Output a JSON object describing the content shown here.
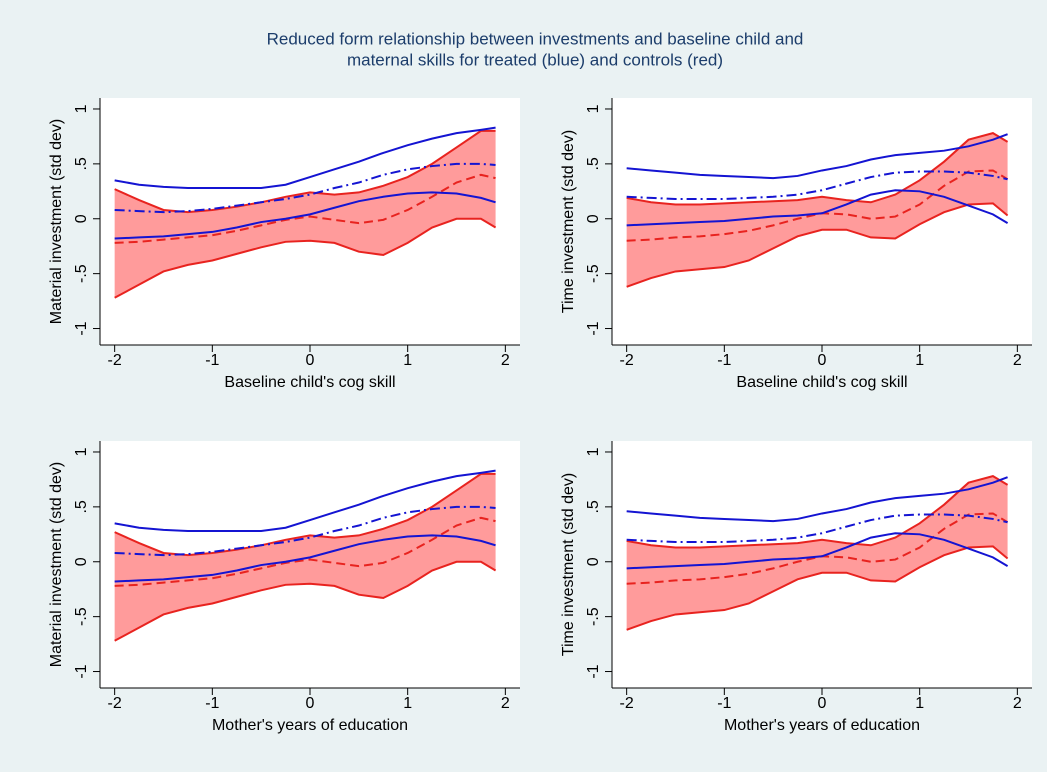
{
  "title": [
    "Reduced form relationship between investments and baseline child and",
    "maternal skills for treated (blue) and controls (red)"
  ],
  "chart_data": [
    {
      "type": "line",
      "xlabel": "Baseline child's cog skill",
      "ylabel": "Material investment (std dev)",
      "x": [
        -2,
        -1.75,
        -1.5,
        -1.25,
        -1,
        -0.75,
        -0.5,
        -0.25,
        0,
        0.25,
        0.5,
        0.75,
        1,
        1.25,
        1.5,
        1.75,
        1.9
      ],
      "xlim": [
        -2.15,
        2.15
      ],
      "ylim": [
        -1.15,
        1.1
      ],
      "xticks": [
        -2,
        -1,
        0,
        1,
        2
      ],
      "yticks": [
        {
          "value": -1,
          "label": "-1"
        },
        {
          "value": -0.5,
          "label": "-.5"
        },
        0,
        {
          "value": 0.5,
          "label": ".5"
        },
        1
      ],
      "band": {
        "color": "#ff9b9b",
        "edge": "#e8231f",
        "upper": [
          0.27,
          0.17,
          0.08,
          0.06,
          0.08,
          0.11,
          0.15,
          0.2,
          0.24,
          0.22,
          0.24,
          0.3,
          0.38,
          0.5,
          0.65,
          0.8,
          0.8
        ],
        "lower": [
          -0.72,
          -0.6,
          -0.48,
          -0.42,
          -0.38,
          -0.32,
          -0.26,
          -0.21,
          -0.2,
          -0.22,
          -0.3,
          -0.33,
          -0.22,
          -0.08,
          0.0,
          0.0,
          -0.08
        ]
      },
      "series": [
        {
          "color": "#e8231f",
          "style": "dashed",
          "values": [
            -0.22,
            -0.21,
            -0.19,
            -0.17,
            -0.15,
            -0.11,
            -0.06,
            -0.01,
            0.02,
            -0.01,
            -0.04,
            -0.01,
            0.08,
            0.2,
            0.33,
            0.4,
            0.37
          ]
        },
        {
          "color": "#1414d2",
          "style": "dash-dot",
          "values": [
            0.08,
            0.07,
            0.06,
            0.07,
            0.09,
            0.12,
            0.15,
            0.18,
            0.22,
            0.28,
            0.33,
            0.4,
            0.45,
            0.48,
            0.5,
            0.5,
            0.49
          ]
        },
        {
          "color": "#1414d2",
          "style": "solid",
          "values": [
            0.35,
            0.31,
            0.29,
            0.28,
            0.28,
            0.28,
            0.28,
            0.31,
            0.38,
            0.45,
            0.52,
            0.6,
            0.67,
            0.73,
            0.78,
            0.81,
            0.83
          ]
        },
        {
          "color": "#1414d2",
          "style": "solid",
          "values": [
            -0.18,
            -0.17,
            -0.16,
            -0.14,
            -0.12,
            -0.08,
            -0.03,
            0.0,
            0.04,
            0.1,
            0.16,
            0.2,
            0.23,
            0.24,
            0.23,
            0.19,
            0.15
          ]
        }
      ]
    },
    {
      "type": "line",
      "xlabel": "Baseline child's cog skill",
      "ylabel": "Time investment (std dev)",
      "x": [
        -2,
        -1.75,
        -1.5,
        -1.25,
        -1,
        -0.75,
        -0.5,
        -0.25,
        0,
        0.25,
        0.5,
        0.75,
        1,
        1.25,
        1.5,
        1.75,
        1.9
      ],
      "xlim": [
        -2.15,
        2.15
      ],
      "ylim": [
        -1.15,
        1.1
      ],
      "xticks": [
        -2,
        -1,
        0,
        1,
        2
      ],
      "yticks": [
        {
          "value": -1,
          "label": "-1"
        },
        {
          "value": -0.5,
          "label": "-.5"
        },
        0,
        {
          "value": 0.5,
          "label": ".5"
        },
        1
      ],
      "band": {
        "color": "#ff9b9b",
        "edge": "#e8231f",
        "upper": [
          0.19,
          0.15,
          0.13,
          0.13,
          0.14,
          0.15,
          0.16,
          0.17,
          0.2,
          0.17,
          0.15,
          0.22,
          0.35,
          0.52,
          0.72,
          0.78,
          0.7
        ],
        "lower": [
          -0.62,
          -0.54,
          -0.48,
          -0.46,
          -0.44,
          -0.38,
          -0.27,
          -0.16,
          -0.1,
          -0.1,
          -0.17,
          -0.18,
          -0.05,
          0.06,
          0.13,
          0.14,
          0.03
        ]
      },
      "series": [
        {
          "color": "#e8231f",
          "style": "dashed",
          "values": [
            -0.2,
            -0.19,
            -0.17,
            -0.16,
            -0.14,
            -0.11,
            -0.06,
            0.0,
            0.05,
            0.04,
            0.0,
            0.02,
            0.13,
            0.3,
            0.43,
            0.44,
            0.36
          ]
        },
        {
          "color": "#1414d2",
          "style": "dash-dot",
          "values": [
            0.2,
            0.19,
            0.18,
            0.18,
            0.18,
            0.19,
            0.2,
            0.22,
            0.26,
            0.32,
            0.38,
            0.42,
            0.43,
            0.43,
            0.42,
            0.39,
            0.36
          ]
        },
        {
          "color": "#1414d2",
          "style": "solid",
          "values": [
            0.46,
            0.44,
            0.42,
            0.4,
            0.39,
            0.38,
            0.37,
            0.39,
            0.44,
            0.48,
            0.54,
            0.58,
            0.6,
            0.62,
            0.66,
            0.72,
            0.77
          ]
        },
        {
          "color": "#1414d2",
          "style": "solid",
          "values": [
            -0.06,
            -0.05,
            -0.04,
            -0.03,
            -0.02,
            0.0,
            0.02,
            0.03,
            0.05,
            0.13,
            0.22,
            0.26,
            0.25,
            0.2,
            0.12,
            0.04,
            -0.04
          ]
        }
      ]
    },
    {
      "type": "line",
      "xlabel": "Mother's years of education",
      "ylabel": "Material investment (std dev)",
      "x": [
        -2,
        -1.75,
        -1.5,
        -1.25,
        -1,
        -0.75,
        -0.5,
        -0.25,
        0,
        0.25,
        0.5,
        0.75,
        1,
        1.25,
        1.5,
        1.75,
        1.9
      ],
      "xlim": [
        -2.15,
        2.15
      ],
      "ylim": [
        -1.15,
        1.1
      ],
      "xticks": [
        -2,
        -1,
        0,
        1,
        2
      ],
      "yticks": [
        {
          "value": -1,
          "label": "-1"
        },
        {
          "value": -0.5,
          "label": "-.5"
        },
        0,
        {
          "value": 0.5,
          "label": ".5"
        },
        1
      ],
      "band": {
        "color": "#ff9b9b",
        "edge": "#e8231f",
        "upper": [
          0.27,
          0.17,
          0.08,
          0.06,
          0.08,
          0.11,
          0.15,
          0.2,
          0.24,
          0.22,
          0.24,
          0.3,
          0.38,
          0.5,
          0.65,
          0.8,
          0.8
        ],
        "lower": [
          -0.72,
          -0.6,
          -0.48,
          -0.42,
          -0.38,
          -0.32,
          -0.26,
          -0.21,
          -0.2,
          -0.22,
          -0.3,
          -0.33,
          -0.22,
          -0.08,
          0.0,
          0.0,
          -0.08
        ]
      },
      "series": [
        {
          "color": "#e8231f",
          "style": "dashed",
          "values": [
            -0.22,
            -0.21,
            -0.19,
            -0.17,
            -0.15,
            -0.11,
            -0.06,
            -0.01,
            0.02,
            -0.01,
            -0.04,
            -0.01,
            0.08,
            0.2,
            0.33,
            0.4,
            0.37
          ]
        },
        {
          "color": "#1414d2",
          "style": "dash-dot",
          "values": [
            0.08,
            0.07,
            0.06,
            0.07,
            0.09,
            0.12,
            0.15,
            0.18,
            0.22,
            0.28,
            0.33,
            0.4,
            0.45,
            0.48,
            0.5,
            0.5,
            0.49
          ]
        },
        {
          "color": "#1414d2",
          "style": "solid",
          "values": [
            0.35,
            0.31,
            0.29,
            0.28,
            0.28,
            0.28,
            0.28,
            0.31,
            0.38,
            0.45,
            0.52,
            0.6,
            0.67,
            0.73,
            0.78,
            0.81,
            0.83
          ]
        },
        {
          "color": "#1414d2",
          "style": "solid",
          "values": [
            -0.18,
            -0.17,
            -0.16,
            -0.14,
            -0.12,
            -0.08,
            -0.03,
            0.0,
            0.04,
            0.1,
            0.16,
            0.2,
            0.23,
            0.24,
            0.23,
            0.19,
            0.15
          ]
        }
      ]
    },
    {
      "type": "line",
      "xlabel": "Mother's years of education",
      "ylabel": "Time investment (std dev)",
      "x": [
        -2,
        -1.75,
        -1.5,
        -1.25,
        -1,
        -0.75,
        -0.5,
        -0.25,
        0,
        0.25,
        0.5,
        0.75,
        1,
        1.25,
        1.5,
        1.75,
        1.9
      ],
      "xlim": [
        -2.15,
        2.15
      ],
      "ylim": [
        -1.15,
        1.1
      ],
      "xticks": [
        -2,
        -1,
        0,
        1,
        2
      ],
      "yticks": [
        {
          "value": -1,
          "label": "-1"
        },
        {
          "value": -0.5,
          "label": "-.5"
        },
        0,
        {
          "value": 0.5,
          "label": ".5"
        },
        1
      ],
      "band": {
        "color": "#ff9b9b",
        "edge": "#e8231f",
        "upper": [
          0.19,
          0.15,
          0.13,
          0.13,
          0.14,
          0.15,
          0.16,
          0.17,
          0.2,
          0.17,
          0.15,
          0.22,
          0.35,
          0.52,
          0.72,
          0.78,
          0.7
        ],
        "lower": [
          -0.62,
          -0.54,
          -0.48,
          -0.46,
          -0.44,
          -0.38,
          -0.27,
          -0.16,
          -0.1,
          -0.1,
          -0.17,
          -0.18,
          -0.05,
          0.06,
          0.13,
          0.14,
          0.03
        ]
      },
      "series": [
        {
          "color": "#e8231f",
          "style": "dashed",
          "values": [
            -0.2,
            -0.19,
            -0.17,
            -0.16,
            -0.14,
            -0.11,
            -0.06,
            0.0,
            0.05,
            0.04,
            0.0,
            0.02,
            0.13,
            0.3,
            0.43,
            0.44,
            0.36
          ]
        },
        {
          "color": "#1414d2",
          "style": "dash-dot",
          "values": [
            0.2,
            0.19,
            0.18,
            0.18,
            0.18,
            0.19,
            0.2,
            0.22,
            0.26,
            0.32,
            0.38,
            0.42,
            0.43,
            0.43,
            0.42,
            0.39,
            0.36
          ]
        },
        {
          "color": "#1414d2",
          "style": "solid",
          "values": [
            0.46,
            0.44,
            0.42,
            0.4,
            0.39,
            0.38,
            0.37,
            0.39,
            0.44,
            0.48,
            0.54,
            0.58,
            0.6,
            0.62,
            0.66,
            0.72,
            0.77
          ]
        },
        {
          "color": "#1414d2",
          "style": "solid",
          "values": [
            -0.06,
            -0.05,
            -0.04,
            -0.03,
            -0.02,
            0.0,
            0.02,
            0.03,
            0.05,
            0.13,
            0.22,
            0.26,
            0.25,
            0.2,
            0.12,
            0.04,
            -0.04
          ]
        }
      ]
    }
  ]
}
